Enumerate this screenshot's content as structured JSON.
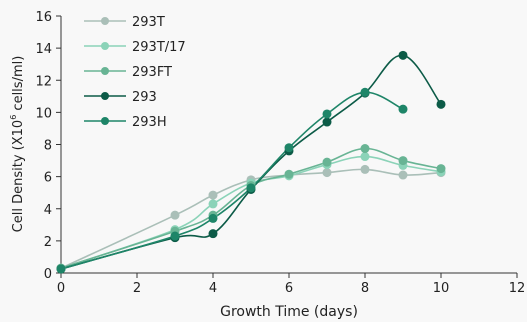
{
  "chart_data": {
    "type": "line",
    "xlabel": "Growth Time (days)",
    "ylabel_parts": [
      "Cell Density (X10",
      "6",
      " cells/ml)"
    ],
    "xlim": [
      0,
      12
    ],
    "ylim": [
      0,
      16
    ],
    "xticks": [
      0,
      2,
      4,
      6,
      8,
      10,
      12
    ],
    "yticks": [
      0,
      2,
      4,
      6,
      8,
      10,
      12,
      14,
      16
    ],
    "grid": false,
    "legend_position": "top-left",
    "series": [
      {
        "name": "293T",
        "color": "#aabfb8",
        "x": [
          0,
          3,
          4,
          5,
          6,
          7,
          8,
          9,
          10
        ],
        "y": [
          0.3,
          3.6,
          4.85,
          5.8,
          6.1,
          6.25,
          6.45,
          6.1,
          6.25
        ]
      },
      {
        "name": "293T/17",
        "color": "#8bd3b8",
        "x": [
          0,
          3,
          4,
          5,
          6,
          7,
          8,
          9,
          10
        ],
        "y": [
          0.3,
          2.7,
          4.3,
          5.6,
          6.05,
          6.75,
          7.25,
          6.7,
          6.3
        ]
      },
      {
        "name": "293FT",
        "color": "#68b494",
        "x": [
          0,
          3,
          4,
          5,
          6,
          7,
          8,
          9,
          10
        ],
        "y": [
          0.3,
          2.6,
          3.6,
          5.45,
          6.15,
          6.9,
          7.75,
          7.0,
          6.5
        ]
      },
      {
        "name": "293",
        "color": "#0c5b47",
        "x": [
          0,
          3,
          4,
          5,
          6,
          7,
          8,
          9,
          10
        ],
        "y": [
          0.25,
          2.2,
          2.45,
          5.2,
          7.6,
          9.4,
          11.2,
          13.55,
          10.5
        ]
      },
      {
        "name": "293H",
        "color": "#1e8568",
        "x": [
          0,
          3,
          4,
          5,
          6,
          7,
          8,
          9
        ],
        "y": [
          0.25,
          2.3,
          3.4,
          5.3,
          7.8,
          9.9,
          11.25,
          10.2
        ]
      }
    ]
  }
}
